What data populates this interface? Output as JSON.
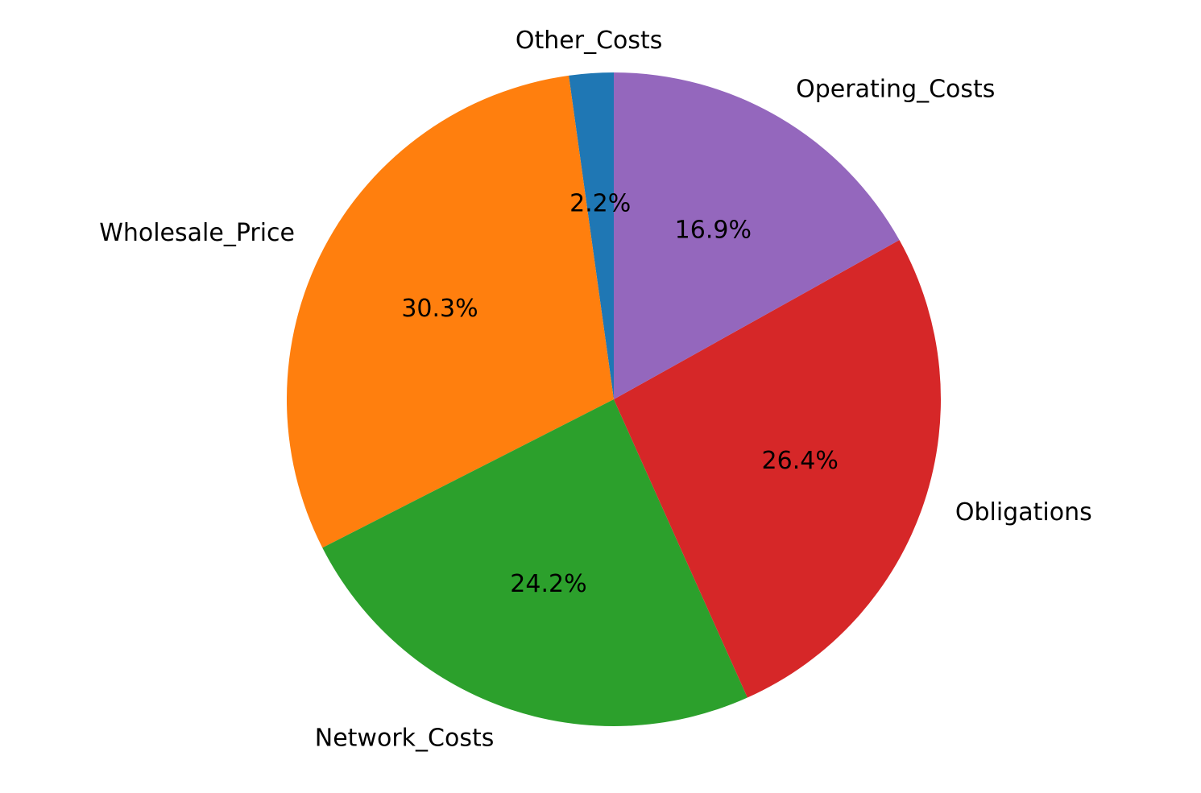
{
  "chart_data": {
    "type": "pie",
    "title": "",
    "start_angle_deg": 90,
    "direction": "counterclockwise",
    "slices": [
      {
        "label": "Other_Costs",
        "value": 2.2,
        "pct_label": "2.2%",
        "color": "#1f77b4"
      },
      {
        "label": "Wholesale_Price",
        "value": 30.3,
        "pct_label": "30.3%",
        "color": "#ff7f0e"
      },
      {
        "label": "Network_Costs",
        "value": 24.2,
        "pct_label": "24.2%",
        "color": "#2ca02c"
      },
      {
        "label": "Obligations",
        "value": 26.4,
        "pct_label": "26.4%",
        "color": "#d62728"
      },
      {
        "label": "Operating_Costs",
        "value": 16.9,
        "pct_label": "16.9%",
        "color": "#9467bd"
      }
    ]
  }
}
